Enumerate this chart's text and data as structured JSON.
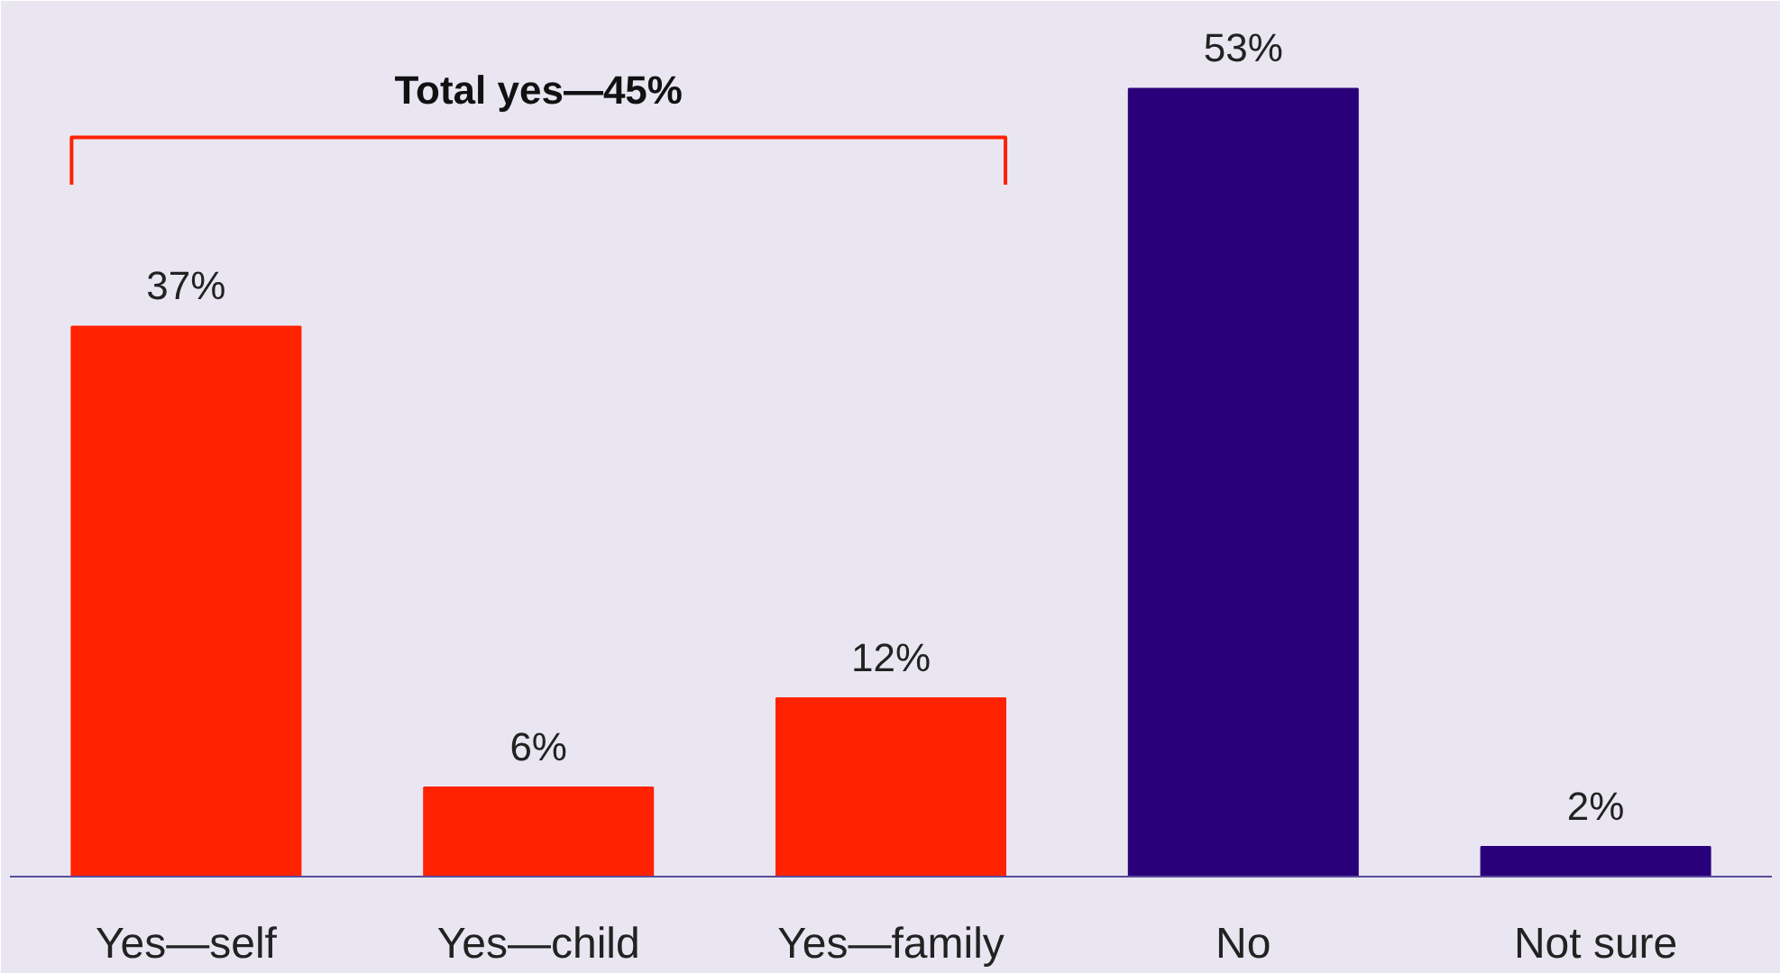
{
  "chart_data": {
    "type": "bar",
    "categories": [
      "Yes—self",
      "Yes—child",
      "Yes—family",
      "No",
      "Not sure"
    ],
    "values": [
      37,
      6,
      12,
      53,
      2
    ],
    "colors": [
      "#ff2200",
      "#ff2200",
      "#ff2200",
      "#2a007a",
      "#2a007a"
    ],
    "value_labels": [
      "37%",
      "6%",
      "12%",
      "53%",
      "2%"
    ],
    "annotations": [
      "Total yes—45%"
    ],
    "grid": false
  }
}
